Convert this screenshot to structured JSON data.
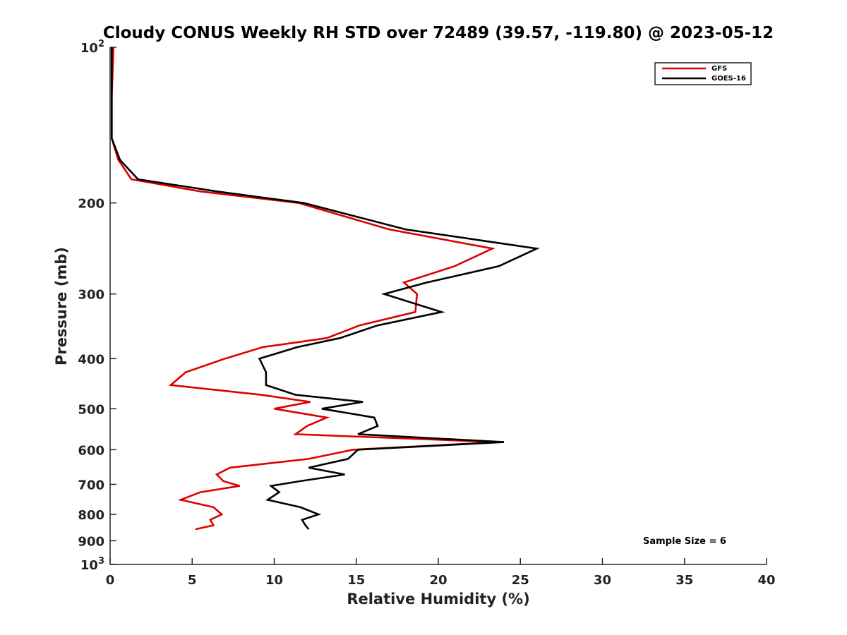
{
  "chart_data": {
    "type": "line",
    "title": "Cloudy CONUS Weekly RH STD over 72489 (39.57, -119.80) @ 2023-05-12",
    "xlabel": "Relative Humidity (%)",
    "ylabel": "Pressure (mb)",
    "xlim": [
      0,
      40
    ],
    "ylim": [
      1000,
      100
    ],
    "y_scale": "log",
    "y_reversed": true,
    "grid": false,
    "legend_position": "top-right",
    "x_ticks": [
      0,
      5,
      10,
      15,
      20,
      25,
      30,
      35,
      40
    ],
    "x_tick_labels": [
      "0",
      "5",
      "10",
      "15",
      "20",
      "25",
      "30",
      "35",
      "40"
    ],
    "y_ticks": [
      {
        "value": 100,
        "base": "10",
        "exp": "2"
      },
      {
        "value": 200,
        "label": "200"
      },
      {
        "value": 300,
        "label": "300"
      },
      {
        "value": 400,
        "label": "400"
      },
      {
        "value": 500,
        "label": "500"
      },
      {
        "value": 600,
        "label": "600"
      },
      {
        "value": 700,
        "label": "700"
      },
      {
        "value": 800,
        "label": "800"
      },
      {
        "value": 900,
        "label": "900"
      },
      {
        "value": 1000,
        "base": "10",
        "exp": "3"
      }
    ],
    "series": [
      {
        "name": "GFS",
        "color": "#dd0000",
        "points": [
          [
            0.2,
            100
          ],
          [
            0.1,
            125
          ],
          [
            0.1,
            150
          ],
          [
            0.5,
            165
          ],
          [
            1.3,
            180
          ],
          [
            5.5,
            190
          ],
          [
            11.5,
            200
          ],
          [
            17,
            225
          ],
          [
            23.3,
            245
          ],
          [
            21,
            265
          ],
          [
            17.9,
            285
          ],
          [
            18.7,
            300
          ],
          [
            18.6,
            325
          ],
          [
            15.2,
            345
          ],
          [
            13.2,
            365
          ],
          [
            9.3,
            380
          ],
          [
            7,
            400
          ],
          [
            4.6,
            425
          ],
          [
            3.7,
            450
          ],
          [
            9.2,
            470
          ],
          [
            12.2,
            485
          ],
          [
            10,
            500
          ],
          [
            13.2,
            520
          ],
          [
            12,
            540
          ],
          [
            11.3,
            560
          ],
          [
            23.7,
            580
          ],
          [
            14.8,
            600
          ],
          [
            12.1,
            625
          ],
          [
            7.3,
            650
          ],
          [
            6.5,
            670
          ],
          [
            6.9,
            690
          ],
          [
            7.9,
            705
          ],
          [
            5.5,
            725
          ],
          [
            4.3,
            750
          ],
          [
            6.3,
            775
          ],
          [
            6.8,
            800
          ],
          [
            6.1,
            820
          ],
          [
            6.3,
            840
          ],
          [
            5.2,
            855
          ]
        ]
      },
      {
        "name": "GOES-16",
        "color": "#000000",
        "points": [
          [
            0.1,
            100
          ],
          [
            0.1,
            125
          ],
          [
            0.1,
            150
          ],
          [
            0.6,
            165
          ],
          [
            1.7,
            180
          ],
          [
            6.5,
            190
          ],
          [
            11.8,
            200
          ],
          [
            18,
            225
          ],
          [
            26,
            245
          ],
          [
            23.7,
            265
          ],
          [
            19.3,
            285
          ],
          [
            16.7,
            300
          ],
          [
            20.2,
            325
          ],
          [
            16.3,
            345
          ],
          [
            14,
            365
          ],
          [
            11.4,
            380
          ],
          [
            9.1,
            400
          ],
          [
            9.5,
            425
          ],
          [
            9.5,
            450
          ],
          [
            11.3,
            470
          ],
          [
            15.4,
            485
          ],
          [
            12.9,
            500
          ],
          [
            16.1,
            520
          ],
          [
            16.3,
            540
          ],
          [
            15.1,
            560
          ],
          [
            24,
            580
          ],
          [
            15.1,
            600
          ],
          [
            14.5,
            625
          ],
          [
            12.1,
            650
          ],
          [
            14.3,
            670
          ],
          [
            11.6,
            690
          ],
          [
            9.8,
            705
          ],
          [
            10.3,
            725
          ],
          [
            9.6,
            750
          ],
          [
            11.6,
            775
          ],
          [
            12.7,
            800
          ],
          [
            11.7,
            820
          ],
          [
            11.9,
            840
          ],
          [
            12.1,
            855
          ]
        ]
      }
    ],
    "annotation": "Sample Size = 6"
  }
}
